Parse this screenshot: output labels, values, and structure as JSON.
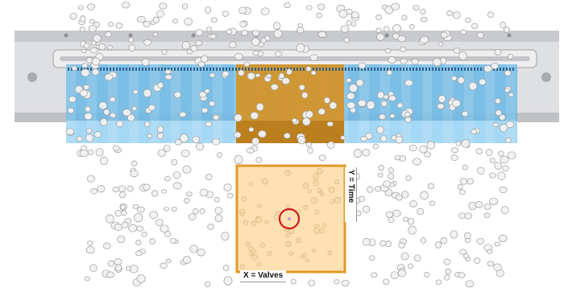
{
  "labels": {
    "x_axis": "X = Valves",
    "y_axis": "Y = Time"
  },
  "colors": {
    "background": "#ffffff",
    "sorter_body": "#d9d9db",
    "sorter_body_shadow": "#b9bbbe",
    "stream_blue": "#5aaee0",
    "stream_blue_light": "#9fd5f3",
    "highlight_band": "#c98a1c",
    "zoom_fill": "#fde1b3",
    "zoom_border": "#e09a28",
    "particle": "#d2d2d2",
    "particle_edge": "#9a9a9a",
    "target_ring": "#d11a1a"
  },
  "icons": {
    "target": "target-circle-icon",
    "particles": "particle-dot-icon"
  }
}
